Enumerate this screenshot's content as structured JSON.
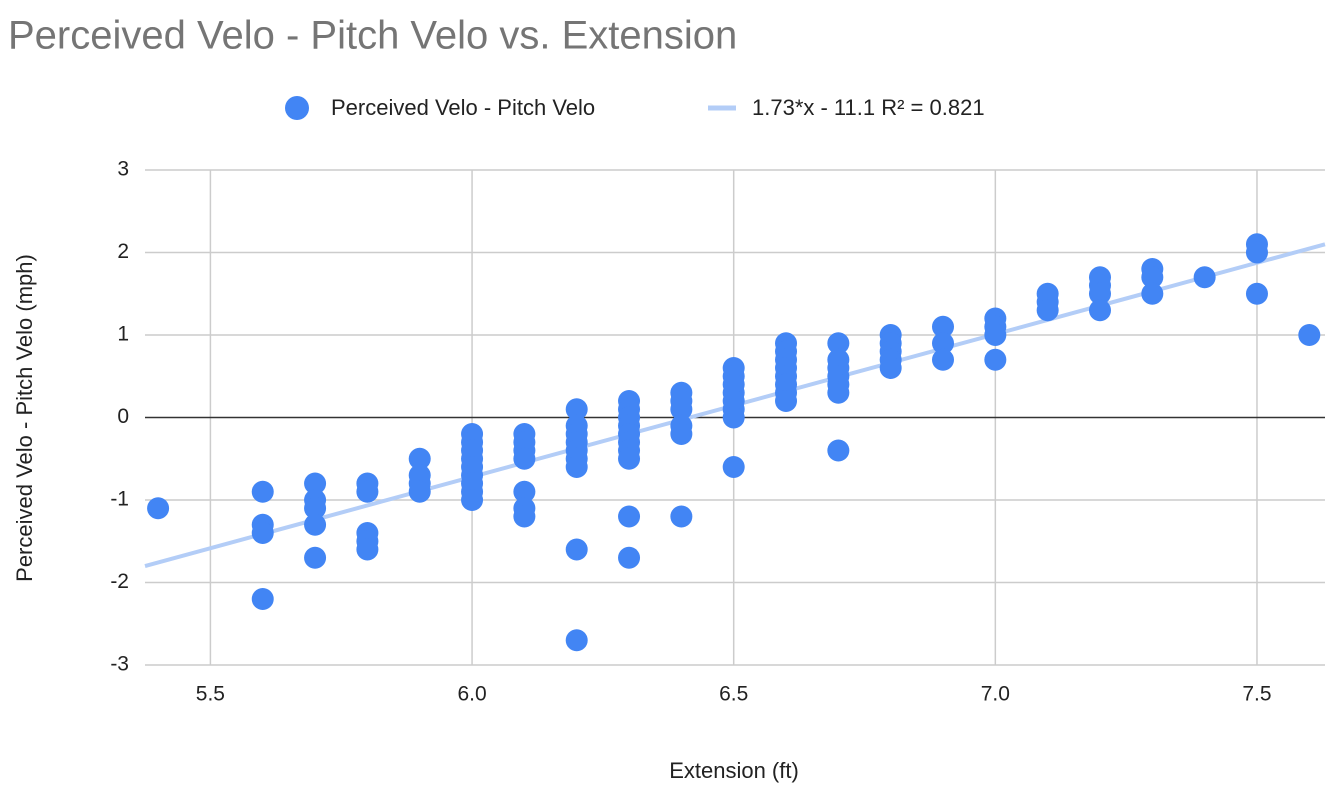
{
  "chart_data": {
    "type": "scatter",
    "title": "Perceived Velo - Pitch Velo vs. Extension",
    "x_label": "Extension (ft)",
    "y_label": "Perceived Velo - Pitch Velo (mph)",
    "xlim": [
      5.375,
      7.63
    ],
    "ylim": [
      -3,
      3
    ],
    "xticks": [
      5.5,
      {
        "value": 6,
        "label": "6.0"
      },
      6.5,
      {
        "value": 7,
        "label": "7.0"
      },
      7.5
    ],
    "yticks": [
      3,
      2,
      1,
      0,
      -1,
      -2,
      -3
    ],
    "grid": true,
    "series": [
      {
        "name": "Perceived Velo - Pitch Velo",
        "color": "#4285f4",
        "x": [
          5.4,
          5.6,
          5.6,
          5.6,
          5.6,
          5.7,
          5.7,
          5.7,
          5.7,
          5.7,
          5.8,
          5.8,
          5.8,
          5.8,
          5.8,
          5.9,
          5.9,
          5.9,
          5.9,
          6.0,
          6.0,
          6.0,
          6.0,
          6.0,
          6.0,
          6.0,
          6.0,
          6.0,
          6.1,
          6.1,
          6.1,
          6.1,
          6.1,
          6.1,
          6.1,
          6.2,
          6.2,
          6.2,
          6.2,
          6.2,
          6.2,
          6.2,
          6.2,
          6.2,
          6.3,
          6.3,
          6.3,
          6.3,
          6.3,
          6.3,
          6.3,
          6.3,
          6.3,
          6.3,
          6.4,
          6.4,
          6.4,
          6.4,
          6.4,
          6.4,
          6.5,
          6.5,
          6.5,
          6.5,
          6.5,
          6.5,
          6.5,
          6.5,
          6.6,
          6.6,
          6.6,
          6.6,
          6.6,
          6.6,
          6.6,
          6.6,
          6.7,
          6.7,
          6.7,
          6.7,
          6.7,
          6.7,
          6.7,
          6.8,
          6.8,
          6.8,
          6.8,
          6.8,
          6.9,
          6.9,
          6.9,
          7.0,
          7.0,
          7.0,
          7.0,
          7.1,
          7.1,
          7.1,
          7.2,
          7.2,
          7.2,
          7.2,
          7.3,
          7.3,
          7.3,
          7.4,
          7.5,
          7.5,
          7.5,
          7.6
        ],
        "y": [
          -1.1,
          -0.9,
          -1.3,
          -1.4,
          -2.2,
          -0.8,
          -1.0,
          -1.1,
          -1.3,
          -1.7,
          -0.8,
          -0.9,
          -1.4,
          -1.5,
          -1.6,
          -0.5,
          -0.7,
          -0.8,
          -0.9,
          -0.2,
          -0.3,
          -0.4,
          -0.5,
          -0.6,
          -0.7,
          -0.8,
          -0.9,
          -1.0,
          -0.2,
          -0.3,
          -0.4,
          -0.5,
          -0.9,
          -1.1,
          -1.2,
          0.1,
          -0.1,
          -0.2,
          -0.3,
          -0.4,
          -0.5,
          -0.6,
          -1.6,
          -2.7,
          0.2,
          0.1,
          0,
          -0.1,
          -0.2,
          -0.3,
          -0.4,
          -0.5,
          -1.2,
          -1.7,
          0.3,
          0.2,
          0.1,
          -0.1,
          -0.2,
          -1.2,
          0.6,
          0.5,
          0.4,
          0.3,
          0.2,
          0.1,
          0,
          -0.6,
          0.9,
          0.8,
          0.7,
          0.6,
          0.5,
          0.4,
          0.3,
          0.2,
          0.9,
          0.7,
          0.6,
          0.5,
          0.4,
          0.3,
          -0.4,
          1.0,
          0.9,
          0.8,
          0.7,
          0.6,
          1.1,
          0.9,
          0.7,
          1.2,
          1.1,
          1.0,
          0.7,
          1.5,
          1.4,
          1.3,
          1.7,
          1.6,
          1.5,
          1.3,
          1.8,
          1.7,
          1.5,
          1.7,
          2.1,
          2.0,
          1.5,
          1.0
        ]
      }
    ],
    "trendline": {
      "label": "1.73*x - 11.1 R² = 0.821",
      "slope": 1.73,
      "intercept": -11.1,
      "color": "#b3cdf7"
    }
  }
}
